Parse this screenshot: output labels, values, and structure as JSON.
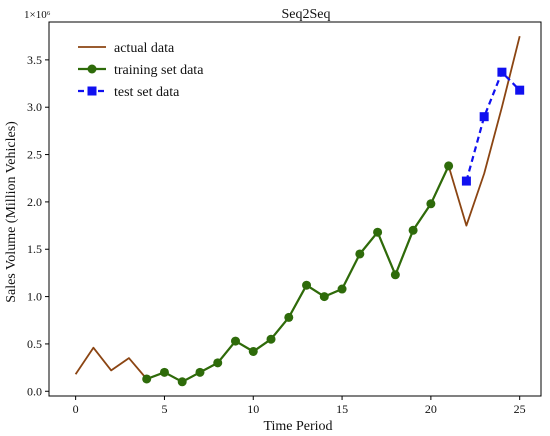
{
  "chart_data": {
    "type": "line",
    "title": "Seq2Seq",
    "xlabel": "Time Period",
    "ylabel": "Sales Volume (Million Vehicles)",
    "y_multiplier_label": "1×10⁶",
    "xlim": [
      -1.5,
      26.2
    ],
    "ylim": [
      -0.05,
      3.9
    ],
    "x_ticks": [
      0,
      5,
      10,
      15,
      20,
      25
    ],
    "y_ticks": [
      0.0,
      0.5,
      1.0,
      1.5,
      2.0,
      2.5,
      3.0,
      3.5
    ],
    "x_tick_labels": [
      "0",
      "5",
      "10",
      "15",
      "20",
      "25"
    ],
    "y_tick_labels": [
      "0.0",
      "0.5",
      "1.0",
      "1.5",
      "2.0",
      "2.5",
      "3.0",
      "3.5"
    ],
    "legend_position": "top-left",
    "grid": false,
    "series": [
      {
        "name": "actual data",
        "style": "line",
        "color": "#8B4513",
        "x": [
          0,
          1,
          2,
          3,
          4,
          5,
          6,
          7,
          8,
          9,
          10,
          11,
          12,
          13,
          14,
          15,
          16,
          17,
          18,
          19,
          20,
          21,
          22,
          23,
          24,
          25
        ],
        "values": [
          0.18,
          0.46,
          0.22,
          0.35,
          0.13,
          0.2,
          0.1,
          0.2,
          0.3,
          0.53,
          0.42,
          0.55,
          0.78,
          1.12,
          1.0,
          1.08,
          1.45,
          1.68,
          1.23,
          1.7,
          1.98,
          2.38,
          1.75,
          2.3,
          3.0,
          3.75
        ]
      },
      {
        "name": "training set data",
        "style": "line-circle",
        "color": "#2E6B0A",
        "x": [
          4,
          5,
          6,
          7,
          8,
          9,
          10,
          11,
          12,
          13,
          14,
          15,
          16,
          17,
          18,
          19,
          20,
          21
        ],
        "values": [
          0.13,
          0.2,
          0.1,
          0.2,
          0.3,
          0.53,
          0.42,
          0.55,
          0.78,
          1.12,
          1.0,
          1.08,
          1.45,
          1.68,
          1.23,
          1.7,
          1.98,
          2.38
        ]
      },
      {
        "name": "test set data",
        "style": "dashed-square",
        "color": "#1010F0",
        "x": [
          22,
          23,
          24,
          25
        ],
        "values": [
          2.22,
          2.9,
          3.37,
          3.18
        ]
      }
    ]
  }
}
